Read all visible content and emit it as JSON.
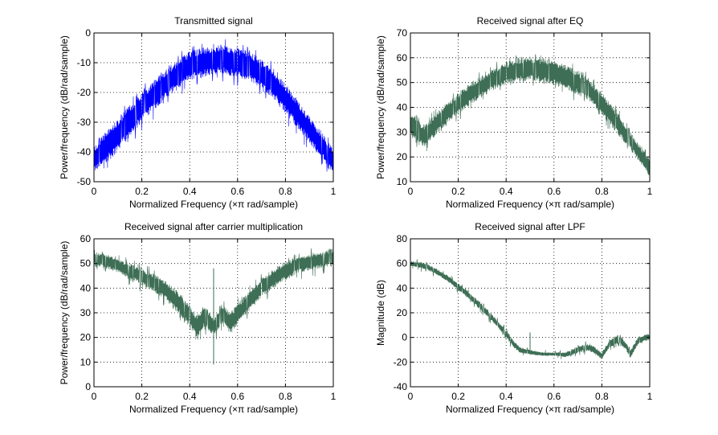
{
  "chart_data": [
    {
      "type": "line",
      "title": "Transmitted signal",
      "xlabel": "Normalized Frequency  (×π rad/sample)",
      "ylabel": "Power/frequency (dB/rad/sample)",
      "xlim": [
        0,
        1
      ],
      "ylim": [
        -50,
        0
      ],
      "xticks": [
        "0",
        "0.2",
        "0.4",
        "0.6",
        "0.8",
        "1"
      ],
      "yticks": [
        "-50",
        "-40",
        "-30",
        "-20",
        "-10",
        "0"
      ],
      "grid": true,
      "color": "#0000ff",
      "series": [
        {
          "x": [
            0,
            0.05,
            0.1,
            0.15,
            0.2,
            0.25,
            0.3,
            0.35,
            0.4,
            0.45,
            0.5,
            0.55,
            0.6,
            0.65,
            0.7,
            0.75,
            0.8,
            0.85,
            0.9,
            0.95,
            1
          ],
          "upper": [
            -38,
            -33,
            -29,
            -24,
            -20,
            -16,
            -12,
            -9,
            -6,
            -5,
            -4,
            -4,
            -5,
            -6,
            -9,
            -12,
            -17,
            -22,
            -28,
            -33,
            -39
          ],
          "lower": [
            -47,
            -44,
            -40,
            -35,
            -30,
            -26,
            -22,
            -19,
            -16,
            -15,
            -14,
            -14,
            -15,
            -16,
            -19,
            -22,
            -27,
            -32,
            -37,
            -42,
            -47
          ]
        }
      ]
    },
    {
      "type": "line",
      "title": "Received signal after EQ",
      "xlabel": "Normalized Frequency  (×π rad/sample)",
      "ylabel": "Power/frequency (dB/rad/sample)",
      "xlim": [
        0,
        1
      ],
      "ylim": [
        10,
        70
      ],
      "xticks": [
        "0",
        "0.2",
        "0.4",
        "0.6",
        "0.8",
        "1"
      ],
      "yticks": [
        "10",
        "20",
        "30",
        "40",
        "50",
        "60",
        "70"
      ],
      "grid": true,
      "color": "#3e6e55",
      "series": [
        {
          "x": [
            0,
            0.03,
            0.06,
            0.1,
            0.15,
            0.2,
            0.25,
            0.3,
            0.35,
            0.4,
            0.45,
            0.5,
            0.55,
            0.6,
            0.65,
            0.7,
            0.75,
            0.8,
            0.85,
            0.9,
            0.95,
            1
          ],
          "upper": [
            39,
            35,
            33,
            37,
            42,
            46,
            50,
            53,
            56,
            58,
            60,
            60,
            60,
            59,
            57,
            55,
            51,
            46,
            40,
            33,
            26,
            19
          ],
          "lower": [
            28,
            25,
            24,
            28,
            33,
            37,
            41,
            44,
            47,
            49,
            50,
            51,
            50,
            49,
            47,
            45,
            42,
            37,
            31,
            25,
            19,
            12
          ]
        }
      ]
    },
    {
      "type": "line",
      "title": "Received signal after carrier multiplication",
      "xlabel": "Normalized Frequency  (×π rad/sample)",
      "ylabel": "Power/frequency (dB/rad/sample)",
      "xlim": [
        0,
        1
      ],
      "ylim": [
        0,
        60
      ],
      "xticks": [
        "0",
        "0.2",
        "0.4",
        "0.6",
        "0.8",
        "1"
      ],
      "yticks": [
        "0",
        "10",
        "20",
        "30",
        "40",
        "50",
        "60"
      ],
      "grid": true,
      "color": "#3e6e55",
      "series": [
        {
          "x": [
            0,
            0.05,
            0.1,
            0.15,
            0.2,
            0.25,
            0.3,
            0.35,
            0.4,
            0.43,
            0.46,
            0.5,
            0.54,
            0.57,
            0.6,
            0.65,
            0.7,
            0.75,
            0.8,
            0.85,
            0.9,
            0.95,
            1
          ],
          "upper": [
            55,
            54,
            52,
            50,
            48,
            46,
            43,
            39,
            33,
            29,
            33,
            28,
            33,
            30,
            34,
            39,
            44,
            48,
            51,
            53,
            54,
            55,
            56
          ],
          "lower": [
            49,
            48,
            46,
            44,
            41,
            38,
            35,
            30,
            24,
            20,
            24,
            21,
            25,
            21,
            25,
            31,
            36,
            40,
            43,
            46,
            47,
            48,
            49
          ]
        }
      ],
      "spike": {
        "x": 0.5,
        "from": 9,
        "to": 48
      }
    },
    {
      "type": "line",
      "title": "Received signal after LPF",
      "xlabel": "Normalized Frequency  (×π rad/sample)",
      "ylabel": "Magnitude (dB)",
      "xlim": [
        0,
        1
      ],
      "ylim": [
        -40,
        80
      ],
      "xticks": [
        "0",
        "0.2",
        "0.4",
        "0.6",
        "0.8",
        "1"
      ],
      "yticks": [
        "-40",
        "-20",
        "0",
        "20",
        "40",
        "60",
        "80"
      ],
      "grid": true,
      "color": "#3e6e55",
      "series": [
        {
          "x": [
            0,
            0.05,
            0.1,
            0.15,
            0.2,
            0.25,
            0.3,
            0.35,
            0.4,
            0.43,
            0.46,
            0.5,
            0.55,
            0.6,
            0.65,
            0.7,
            0.73,
            0.76,
            0.8,
            0.83,
            0.87,
            0.9,
            0.92,
            0.95,
            0.98,
            1
          ],
          "upper": [
            62,
            61,
            57,
            51,
            44,
            36,
            27,
            17,
            6,
            -2,
            -8,
            -10,
            -12,
            -12,
            -12,
            -7,
            -5,
            -6,
            -12,
            -3,
            3,
            -4,
            -10,
            0,
            3,
            3
          ],
          "lower": [
            58,
            56,
            52,
            46,
            38,
            30,
            21,
            11,
            0,
            -8,
            -13,
            -14,
            -15,
            -15,
            -16,
            -13,
            -11,
            -12,
            -18,
            -9,
            -5,
            -10,
            -17,
            -6,
            -3,
            -2
          ]
        }
      ],
      "spike": {
        "x": 0.5,
        "from": -14,
        "to": 4
      }
    }
  ]
}
